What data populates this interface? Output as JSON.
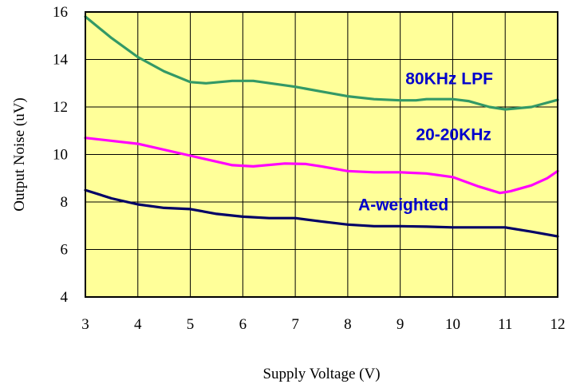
{
  "chart_data": {
    "type": "line",
    "title": "",
    "xlabel": "Supply Voltage (V)",
    "ylabel": "Output Noise (uV)",
    "xlim": [
      3,
      12
    ],
    "ylim": [
      4,
      16
    ],
    "x_ticks": [
      "3",
      "4",
      "5",
      "6",
      "7",
      "8",
      "9",
      "10",
      "11",
      "12"
    ],
    "y_ticks": [
      "4",
      "6",
      "8",
      "10",
      "12",
      "14",
      "16"
    ],
    "grid": true,
    "plot_background": "#FFFF99",
    "series": [
      {
        "name": "80KHz LPF",
        "color": "#339966",
        "x": [
          3,
          3.5,
          4,
          4.5,
          5,
          5.3,
          5.8,
          6.2,
          7,
          7.5,
          8,
          8.5,
          9,
          9.3,
          9.5,
          10,
          10.3,
          10.7,
          11,
          11.5,
          12
        ],
        "y": [
          15.8,
          14.9,
          14.1,
          13.5,
          13.05,
          13.0,
          13.1,
          13.1,
          12.85,
          12.65,
          12.45,
          12.33,
          12.28,
          12.28,
          12.33,
          12.33,
          12.25,
          12.0,
          11.9,
          12.0,
          12.3
        ]
      },
      {
        "name": "20-20KHz",
        "color": "#FF00FF",
        "x": [
          3,
          4,
          5,
          5.8,
          6.2,
          6.8,
          7.2,
          7.5,
          8,
          8.5,
          9,
          9.5,
          10,
          10.5,
          10.9,
          11.1,
          11.5,
          11.8,
          12
        ],
        "y": [
          10.7,
          10.45,
          9.95,
          9.55,
          9.5,
          9.62,
          9.6,
          9.5,
          9.3,
          9.25,
          9.25,
          9.2,
          9.05,
          8.65,
          8.38,
          8.45,
          8.7,
          9.0,
          9.3
        ]
      },
      {
        "name": "A-weighted",
        "color": "#000066",
        "x": [
          3,
          3.5,
          4,
          4.5,
          5,
          5.5,
          6,
          6.5,
          7,
          7.5,
          8,
          8.5,
          9,
          9.5,
          10,
          10.5,
          11,
          11.5,
          12
        ],
        "y": [
          8.5,
          8.15,
          7.9,
          7.75,
          7.7,
          7.5,
          7.38,
          7.32,
          7.32,
          7.18,
          7.05,
          6.98,
          6.98,
          6.96,
          6.93,
          6.93,
          6.93,
          6.75,
          6.55
        ]
      }
    ],
    "annotations": [
      {
        "text": "80KHz LPF",
        "x": 9.1,
        "y": 12.95,
        "color": "#0000CC"
      },
      {
        "text": "20-20KHz",
        "x": 9.3,
        "y": 10.6,
        "color": "#0000CC"
      },
      {
        "text": "A-weighted",
        "x": 8.2,
        "y": 7.65,
        "color": "#0000CC"
      }
    ]
  }
}
